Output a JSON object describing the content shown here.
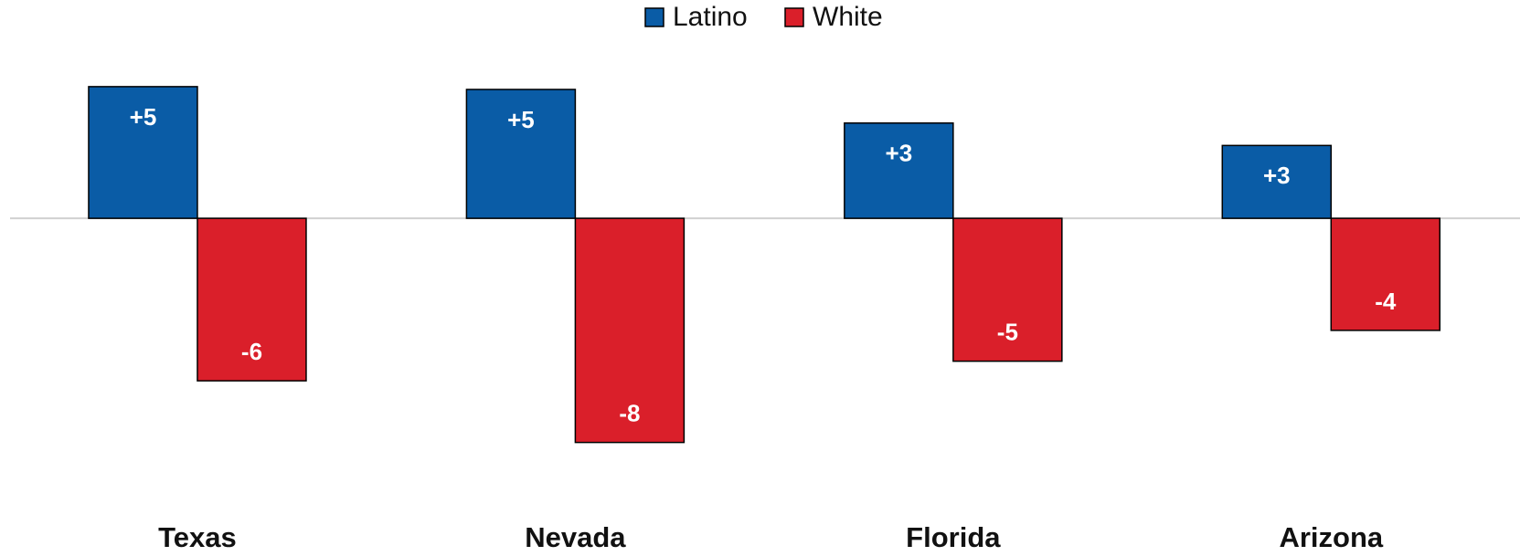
{
  "chart_data": {
    "type": "bar",
    "categories": [
      "Texas",
      "Nevada",
      "Florida",
      "Arizona"
    ],
    "series": [
      {
        "name": "Latino",
        "color": "#0a5ca6",
        "values": [
          4.7,
          4.6,
          3.4,
          2.6
        ],
        "value_labels": [
          "+5",
          "+5",
          "+3",
          "+3"
        ]
      },
      {
        "name": "White",
        "color": "#da1f2a",
        "values": [
          -5.8,
          -8.0,
          -5.1,
          -4.0
        ],
        "value_labels": [
          "-6",
          "-8",
          "-5",
          "-4"
        ]
      }
    ],
    "ylim": [
      -10,
      6
    ],
    "legend": "top"
  }
}
